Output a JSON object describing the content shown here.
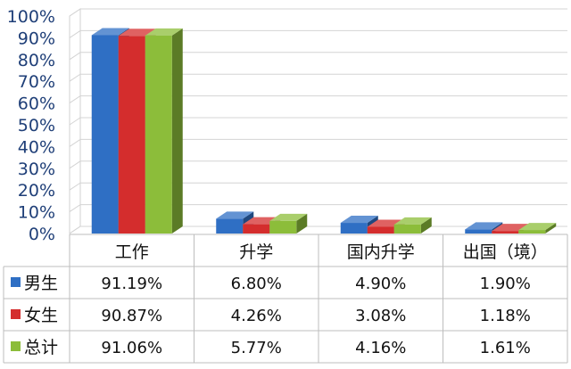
{
  "chart_data": {
    "type": "bar",
    "title": "",
    "xlabel": "",
    "ylabel": "",
    "ylim": [
      0,
      100
    ],
    "yticks": [
      "0%",
      "10%",
      "20%",
      "30%",
      "40%",
      "50%",
      "60%",
      "70%",
      "80%",
      "90%",
      "100%"
    ],
    "grid": true,
    "legend": "data-table",
    "style": "3d-bars",
    "categories": [
      "工作",
      "升学",
      "国内升学",
      "出国（境）"
    ],
    "series": [
      {
        "name": "男生",
        "color": "#2f6fc4",
        "values": [
          91.19,
          6.8,
          4.9,
          1.9
        ],
        "labels": [
          "91.19%",
          "6.80%",
          "4.90%",
          "1.90%"
        ]
      },
      {
        "name": "女生",
        "color": "#d42d2d",
        "values": [
          90.87,
          4.26,
          3.08,
          1.18
        ],
        "labels": [
          "90.87%",
          "4.26%",
          "3.08%",
          "1.18%"
        ]
      },
      {
        "name": "总计",
        "color": "#8cbd3a",
        "values": [
          91.06,
          5.77,
          4.16,
          1.61
        ],
        "labels": [
          "91.06%",
          "5.77%",
          "4.16%",
          "1.61%"
        ]
      }
    ]
  }
}
